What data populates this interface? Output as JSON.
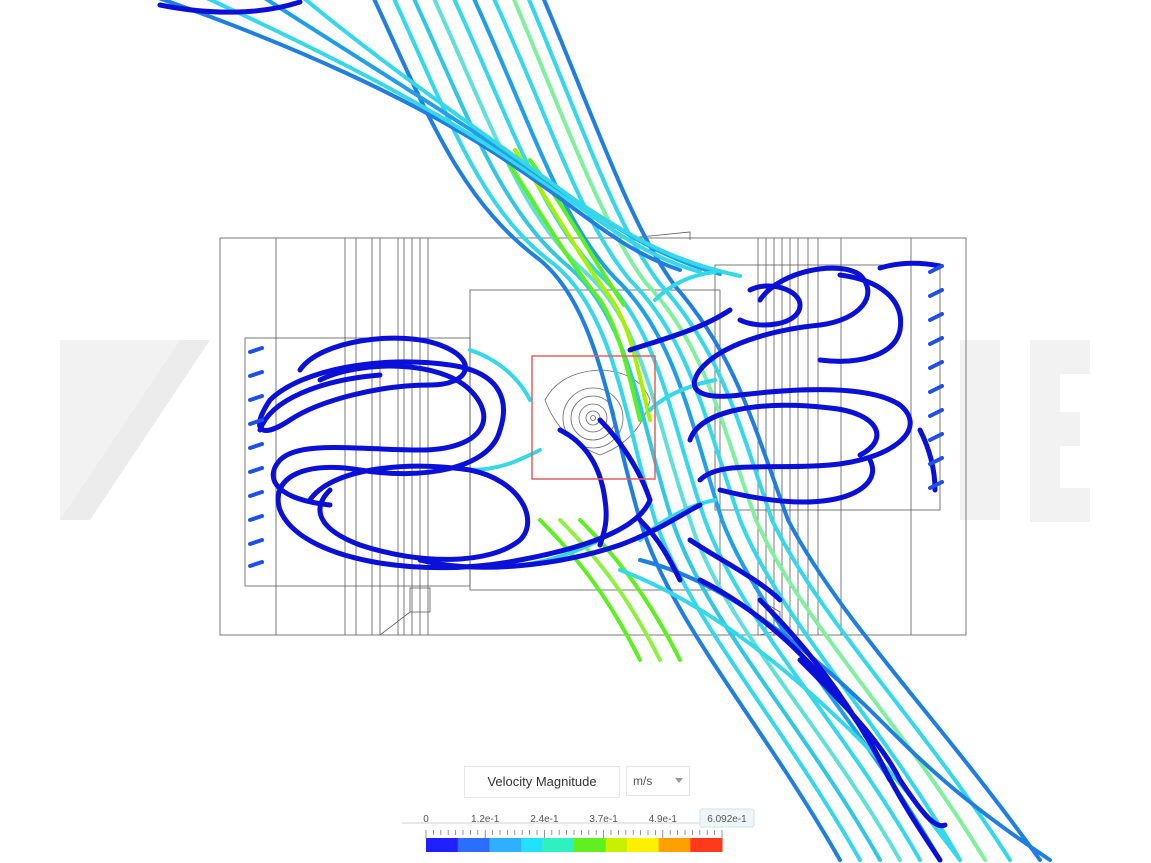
{
  "colorbar": {
    "title": "Velocity Magnitude",
    "unit": "m/s",
    "min": 0,
    "max": 0.6092,
    "tick_labels": [
      "0",
      "1.2e-1",
      "2.4e-1",
      "3.7e-1",
      "4.9e-1",
      "6.092e-1"
    ],
    "palette": [
      "#2020ff",
      "#2a6dff",
      "#2fb0ff",
      "#22e0ff",
      "#30f0c0",
      "#60f020",
      "#c8f000",
      "#fff000",
      "#ffa000",
      "#ff3a1a"
    ]
  },
  "colors": {
    "slow_streamline": "#0b10d8",
    "medium_streamline": "#1f7fe0",
    "fast_streamline": "#34d8e8",
    "mesh_outline": "#5a5a5a",
    "selection_box": "#e26060",
    "watermark": "#f2f2f2"
  },
  "icons": {
    "watermark": "simscale-logo-watermark"
  }
}
